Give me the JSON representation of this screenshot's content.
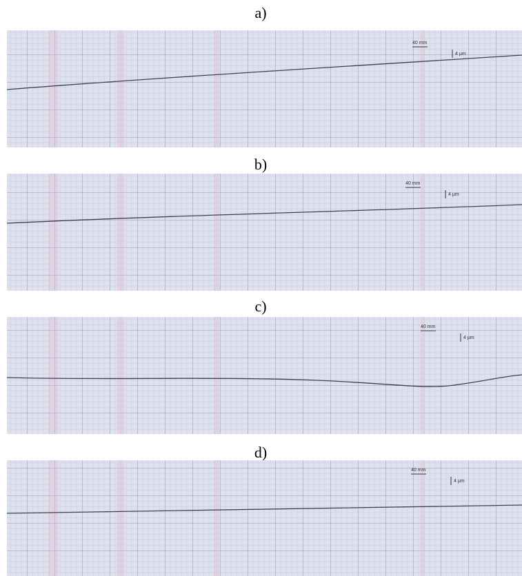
{
  "panels": [
    {
      "label": "a)",
      "scale_x": "40 mm",
      "scale_y": "4 μm"
    },
    {
      "label": "b)",
      "scale_x": "40 mm",
      "scale_y": "4 μm"
    },
    {
      "label": "c)",
      "scale_x": "40 mm",
      "scale_y": "4 μm"
    },
    {
      "label": "d)",
      "scale_x": "40 mm",
      "scale_y": "4 μm"
    }
  ]
}
